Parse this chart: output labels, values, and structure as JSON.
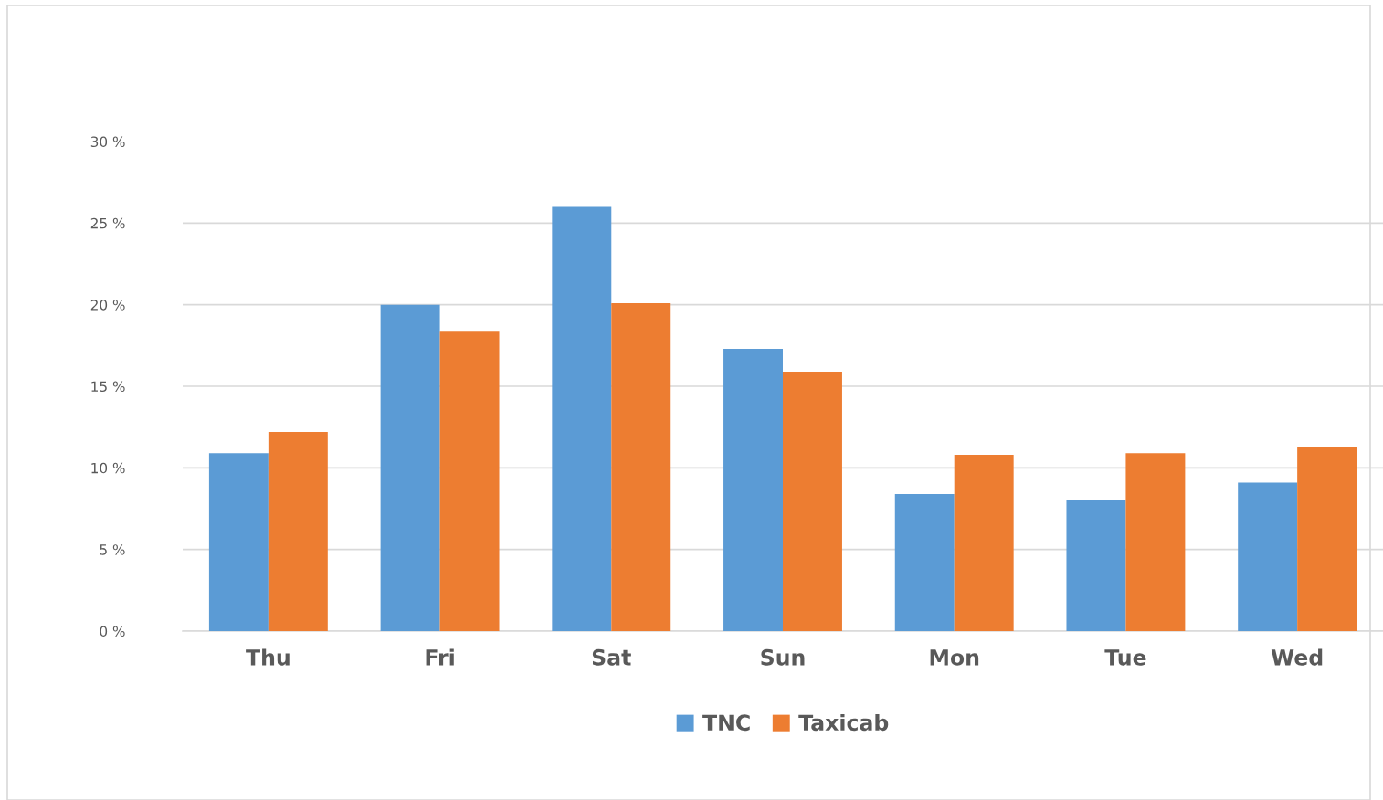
{
  "chart_data": {
    "type": "bar",
    "categories": [
      "Thu",
      "Fri",
      "Sat",
      "Sun",
      "Mon",
      "Tue",
      "Wed"
    ],
    "series": [
      {
        "name": "TNC",
        "color": "#5b9bd5",
        "values": [
          10.9,
          20.0,
          26.0,
          17.3,
          8.4,
          8.0,
          9.1
        ]
      },
      {
        "name": "Taxicab",
        "color": "#ed7d31",
        "values": [
          12.2,
          18.4,
          20.1,
          15.9,
          10.8,
          10.9,
          11.3
        ]
      }
    ],
    "ylim": [
      0,
      30
    ],
    "yticks": [
      {
        "value": 0,
        "label": "0 %"
      },
      {
        "value": 5,
        "label": "5 %"
      },
      {
        "value": 10,
        "label": "10 %"
      },
      {
        "value": 15,
        "label": "15 %"
      },
      {
        "value": 20,
        "label": "20 %"
      },
      {
        "value": 25,
        "label": "25 %"
      },
      {
        "value": 30,
        "label": "30 %"
      }
    ],
    "grid": "y",
    "legend": "bottom"
  }
}
